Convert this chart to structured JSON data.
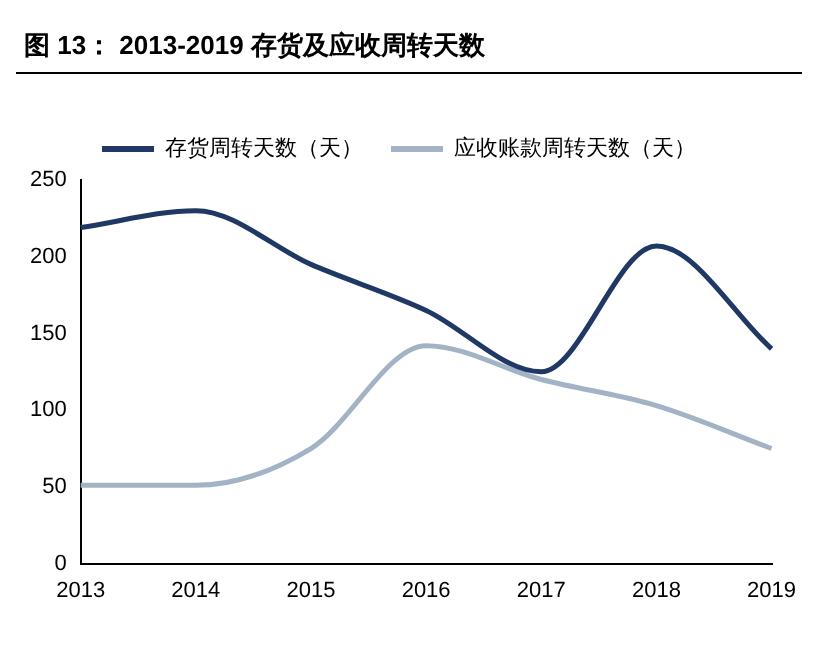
{
  "chart_data": {
    "type": "line",
    "title": "图 13： 2013-2019 存货及应收周转天数",
    "categories": [
      "2013",
      "2014",
      "2015",
      "2016",
      "2017",
      "2018",
      "2019"
    ],
    "series": [
      {
        "name": "存货周转天数（天）",
        "color": "#1f3864",
        "values": [
          219,
          230,
          195,
          165,
          125,
          207,
          140
        ]
      },
      {
        "name": "应收账款周转天数（天）",
        "color": "#a3b3c6",
        "values": [
          51,
          51,
          75,
          142,
          120,
          103,
          75
        ]
      }
    ],
    "ylim": [
      0,
      250
    ],
    "yticks": [
      0,
      50,
      100,
      150,
      200,
      250
    ],
    "grid": false,
    "legend": "top",
    "marker": "none",
    "line_style": "solid"
  }
}
